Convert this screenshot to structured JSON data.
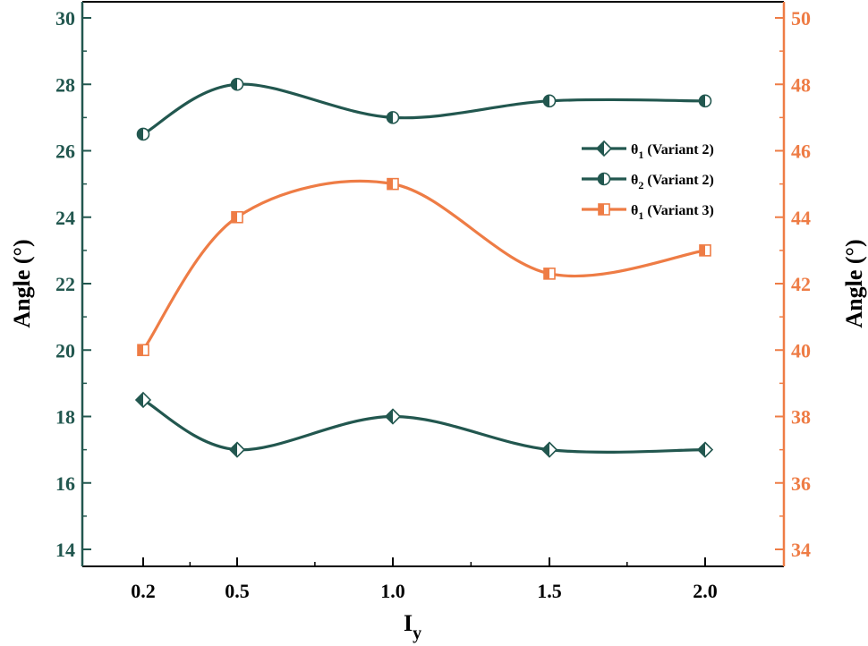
{
  "chart_data": {
    "type": "line",
    "x": [
      0.2,
      0.5,
      1.0,
      1.5,
      2.0
    ],
    "x_tick_labels": [
      "0.2",
      "0.5",
      "1.0",
      "1.5",
      "2.0"
    ],
    "xlabel_main": "I",
    "xlabel_sub": "y",
    "ylabel_left": "Angle (°)",
    "ylabel_right": "Angle (°)",
    "ylim_left": [
      13.5,
      30.5
    ],
    "ylim_right": [
      33.5,
      50.5
    ],
    "y_ticks_left": [
      "14",
      "16",
      "18",
      "20",
      "22",
      "24",
      "26",
      "28",
      "30"
    ],
    "y_ticks_right": [
      "34",
      "36",
      "38",
      "40",
      "42",
      "44",
      "46",
      "48",
      "50"
    ],
    "series": [
      {
        "name": "θ1 (Variant 2)",
        "legend_symbol": "θ",
        "legend_sub": "1",
        "legend_suffix": " (Variant 2)",
        "axis": "left",
        "marker": "diamond-half",
        "color": "#22574f",
        "values": [
          18.5,
          17.0,
          18.0,
          17.0,
          17.0
        ]
      },
      {
        "name": "θ2 (Variant 2)",
        "legend_symbol": "θ",
        "legend_sub": "2",
        "legend_suffix": " (Variant 2)",
        "axis": "left",
        "marker": "circle-half",
        "color": "#22574f",
        "values": [
          26.5,
          28.0,
          27.0,
          27.5,
          27.5
        ]
      },
      {
        "name": "θ1 (Variant 3)",
        "legend_symbol": "θ",
        "legend_sub": "1",
        "legend_suffix": " (Variant 3)",
        "axis": "right",
        "marker": "square-half",
        "color": "#ee7c45",
        "values": [
          40.0,
          44.0,
          45.0,
          42.3,
          43.0
        ]
      }
    ],
    "left_axis_color": "#22574f",
    "right_axis_color": "#ee7c45",
    "legend_position": "top-right"
  }
}
